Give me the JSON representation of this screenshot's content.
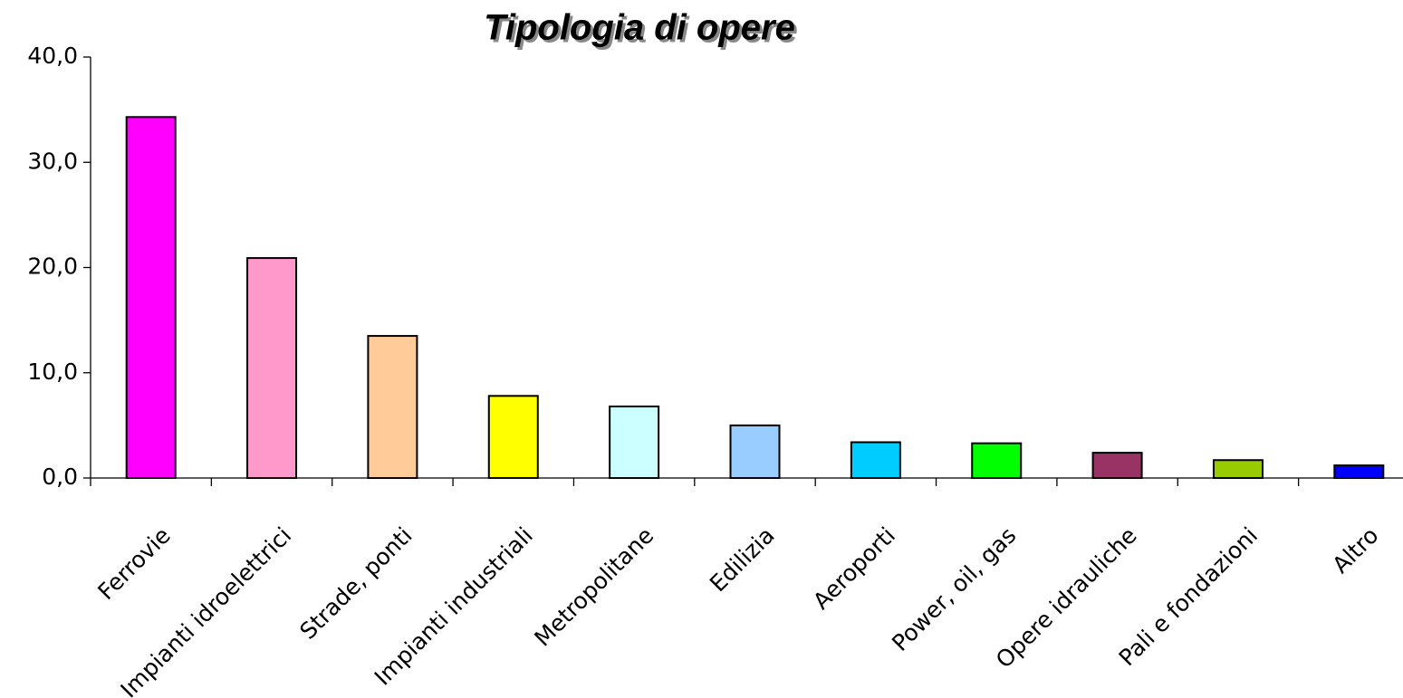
{
  "chart_data": {
    "type": "bar",
    "title": "Tipologia di opere",
    "categories": [
      "Ferrovie",
      "Impianti idroelettrici",
      "Strade, ponti",
      "Impianti industriali",
      "Metropolitane",
      "Edilizia",
      "Aeroporti",
      "Power, oil, gas",
      "Opere idrauliche",
      "Pali e fondazioni",
      "Altro"
    ],
    "values": [
      34.3,
      20.9,
      13.5,
      7.8,
      6.8,
      5.0,
      3.4,
      3.3,
      2.4,
      1.7,
      1.2
    ],
    "colors": [
      "#ff00ff",
      "#ff99cc",
      "#ffcc99",
      "#ffff00",
      "#ccffff",
      "#99ccff",
      "#00ccff",
      "#00ff00",
      "#993366",
      "#99cc00",
      "#0000ff"
    ],
    "ylim": [
      0,
      40
    ],
    "yticks": [
      {
        "value": 0,
        "label": "0,0"
      },
      {
        "value": 10,
        "label": "10,0"
      },
      {
        "value": 20,
        "label": "20,0"
      },
      {
        "value": 30,
        "label": "30,0"
      },
      {
        "value": 40,
        "label": "40,0"
      }
    ],
    "grid": false
  }
}
